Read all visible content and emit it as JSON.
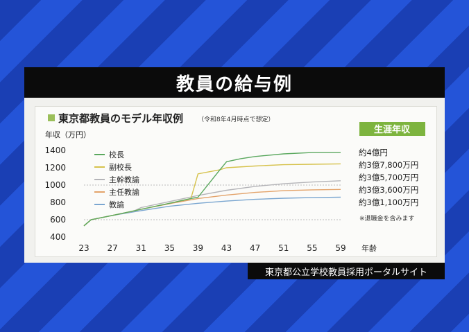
{
  "title": "教員の給与例",
  "source": "東京都公立学校教員採用ポータルサイト",
  "chart_data": {
    "type": "line",
    "title": "東京都教員のモデル年収例",
    "subtitle": "（令和8年4月時点で想定）",
    "ylabel": "年収（万円）",
    "xlabel": "年齢",
    "xlim": [
      23,
      59
    ],
    "ylim": [
      400,
      1400
    ],
    "x_ticks": [
      "23",
      "27",
      "31",
      "35",
      "39",
      "43",
      "47",
      "51",
      "55",
      "59"
    ],
    "y_ticks": [
      "400",
      "600",
      "800",
      "1000",
      "1200",
      "1400"
    ],
    "grid": "dotted-horizontal",
    "legend_position": "upper-left",
    "lifetime_header": "生涯年収",
    "note": "※退職金を含みます",
    "series": [
      {
        "name": "校長",
        "color": "#5aa85e",
        "x": [
          23,
          24,
          27,
          31,
          35,
          38,
          39,
          42,
          43,
          45,
          47,
          51,
          55,
          59
        ],
        "y": [
          530,
          600,
          650,
          720,
          790,
          845,
          860,
          1170,
          1270,
          1305,
          1330,
          1360,
          1375,
          1375
        ],
        "lifetime": "約4億円"
      },
      {
        "name": "副校長",
        "color": "#d6c24c",
        "x": [
          23,
          24,
          27,
          31,
          35,
          38,
          39,
          42,
          43,
          47,
          51,
          55,
          59
        ],
        "y": [
          530,
          600,
          650,
          720,
          790,
          845,
          1130,
          1175,
          1200,
          1220,
          1235,
          1240,
          1245
        ],
        "lifetime": "約3億7,800万円"
      },
      {
        "name": "主幹教諭",
        "color": "#b4b4b8",
        "x": [
          23,
          24,
          27,
          30,
          31,
          35,
          39,
          43,
          47,
          51,
          55,
          59
        ],
        "y": [
          530,
          600,
          650,
          700,
          740,
          810,
          880,
          940,
          985,
          1015,
          1035,
          1050
        ],
        "lifetime": "約3億5,700万円"
      },
      {
        "name": "主任教諭",
        "color": "#e3a36a",
        "x": [
          23,
          24,
          27,
          30,
          31,
          35,
          39,
          43,
          47,
          51,
          55,
          59
        ],
        "y": [
          530,
          600,
          650,
          700,
          720,
          785,
          845,
          885,
          915,
          935,
          945,
          950
        ],
        "lifetime": "約3億3,600万円"
      },
      {
        "name": "教諭",
        "color": "#7aa6d0",
        "x": [
          23,
          24,
          27,
          31,
          35,
          39,
          43,
          47,
          51,
          55,
          59
        ],
        "y": [
          530,
          600,
          650,
          705,
          755,
          790,
          815,
          835,
          848,
          855,
          860
        ],
        "lifetime": "約3億1,100万円"
      }
    ]
  }
}
